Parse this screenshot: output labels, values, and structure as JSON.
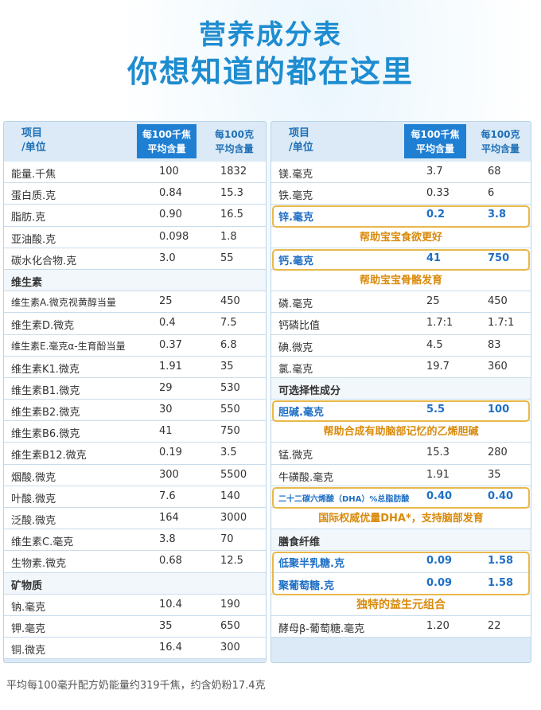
{
  "title": {
    "line1": "营养成分表",
    "line2": "你想知道的都在这里"
  },
  "headers": {
    "item": "项目",
    "unit": "/单位",
    "per_kj_1": "每100千焦",
    "per_kj_2": "平均含量",
    "per_g_1": "每100克",
    "per_g_2": "平均含量"
  },
  "left_rows": [
    {
      "name": "能量.千焦",
      "v1": "100",
      "v2": "1832"
    },
    {
      "name": "蛋白质.克",
      "v1": "0.84",
      "v2": "15.3"
    },
    {
      "name": "脂肪.克",
      "v1": "0.90",
      "v2": "16.5"
    },
    {
      "name": "亚油酸.克",
      "v1": "0.098",
      "v2": "1.8"
    },
    {
      "name": "碳水化合物.克",
      "v1": "3.0",
      "v2": "55"
    },
    {
      "name": "维生素",
      "v1": "",
      "v2": ""
    },
    {
      "name": "维生素A.微克视黄醇当量",
      "v1": "25",
      "v2": "450"
    },
    {
      "name": "维生素D.微克",
      "v1": "0.4",
      "v2": "7.5"
    },
    {
      "name": "维生素E.毫克α-生育酚当量",
      "v1": "0.37",
      "v2": "6.8"
    },
    {
      "name": "维生素K1.微克",
      "v1": "1.91",
      "v2": "35"
    },
    {
      "name": "维生素B1.微克",
      "v1": "29",
      "v2": "530"
    },
    {
      "name": "维生素B2.微克",
      "v1": "30",
      "v2": "550"
    },
    {
      "name": "维生素B6.微克",
      "v1": "41",
      "v2": "750"
    },
    {
      "name": "维生素B12.微克",
      "v1": "0.19",
      "v2": "3.5"
    },
    {
      "name": "烟酸.微克",
      "v1": "300",
      "v2": "5500"
    },
    {
      "name": "叶酸.微克",
      "v1": "7.6",
      "v2": "140"
    },
    {
      "name": "泛酸.微克",
      "v1": "164",
      "v2": "3000"
    },
    {
      "name": "维生素C.毫克",
      "v1": "3.8",
      "v2": "70"
    },
    {
      "name": "生物素.微克",
      "v1": "0.68",
      "v2": "12.5"
    },
    {
      "name": "矿物质",
      "v1": "",
      "v2": ""
    },
    {
      "name": "钠.毫克",
      "v1": "10.4",
      "v2": "190"
    },
    {
      "name": "钾.毫克",
      "v1": "35",
      "v2": "650"
    },
    {
      "name": "铜.微克",
      "v1": "16.4",
      "v2": "300"
    }
  ],
  "right_rows": [
    {
      "name": "镁.毫克",
      "v1": "3.7",
      "v2": "68"
    },
    {
      "name": "铁.毫克",
      "v1": "0.33",
      "v2": "6"
    },
    {
      "name": "锌.毫克",
      "v1": "0.2",
      "v2": "3.8"
    },
    {
      "note": "帮助宝宝食欲更好"
    },
    {
      "name": "钙.毫克",
      "v1": "41",
      "v2": "750"
    },
    {
      "note": "帮助宝宝骨骼发育"
    },
    {
      "name": "磷.毫克",
      "v1": "25",
      "v2": "450"
    },
    {
      "name": "钙磷比值",
      "v1": "1.7:1",
      "v2": "1.7:1"
    },
    {
      "name": "碘.微克",
      "v1": "4.5",
      "v2": "83"
    },
    {
      "name": "氯.毫克",
      "v1": "19.7",
      "v2": "360"
    },
    {
      "name": "可选择性成分",
      "v1": "",
      "v2": ""
    },
    {
      "name": "胆碱.毫克",
      "v1": "5.5",
      "v2": "100"
    },
    {
      "note": "帮助合成有助脑部记忆的乙烯胆碱"
    },
    {
      "name": "锰.微克",
      "v1": "15.3",
      "v2": "280"
    },
    {
      "name": "牛磺酸.毫克",
      "v1": "1.91",
      "v2": "35"
    },
    {
      "name": "二十二碳六烯酸（DHA）%总脂肪酸",
      "v1": "0.40",
      "v2": "0.40"
    },
    {
      "note": "国际权威优量DHA*，支持脑部发育"
    },
    {
      "name": "膳食纤维",
      "v1": "",
      "v2": ""
    },
    {
      "name": "低聚半乳糖.克",
      "v1": "0.09",
      "v2": "1.58"
    },
    {
      "name": "聚葡萄糖.克",
      "v1": "0.09",
      "v2": "1.58"
    },
    {
      "note": "独特的益生元组合"
    },
    {
      "name": "酵母β-葡萄糖.毫克",
      "v1": "1.20",
      "v2": "22"
    }
  ],
  "footer": "平均每100毫升配方奶能量约319千焦，约含奶粉17.4克"
}
